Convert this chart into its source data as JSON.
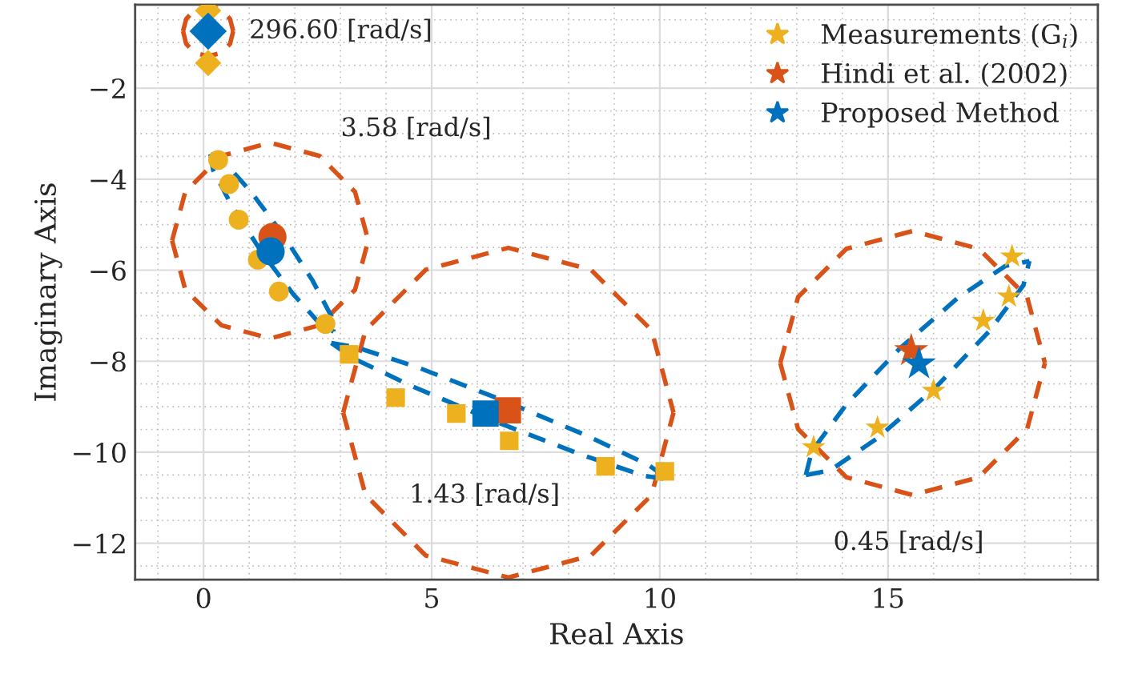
{
  "chart_data": {
    "type": "scatter",
    "xlabel": "Real Axis",
    "ylabel": "Imaginary Axis",
    "xlim": [
      -1.5,
      19.6
    ],
    "ylim": [
      -12.8,
      -0.17
    ],
    "xticks": [
      0,
      5,
      10,
      15
    ],
    "yticks": [
      {
        "value": -12,
        "label": "−12"
      },
      {
        "value": -10,
        "label": "−10"
      },
      {
        "value": -8,
        "label": "−8"
      },
      {
        "value": -6,
        "label": "−6"
      },
      {
        "value": -4,
        "label": "−4"
      },
      {
        "value": -2,
        "label": "−2"
      }
    ],
    "grid": true,
    "legend": "top right",
    "annotations": [
      "296.60 [rad/s]",
      "3.58 [rad/s]",
      "1.43 [rad/s]",
      "0.45 [rad/s]"
    ],
    "series": [
      {
        "type": "line",
        "color": "#d95319",
        "line_style": "dashed",
        "marker": "none",
        "x": [
          -0.45,
          -0.38,
          -0.18,
          0.1,
          0.38,
          0.58,
          0.65
        ],
        "values": [
          -0.75,
          -0.48,
          -0.27,
          -0.2,
          -0.27,
          -0.48,
          -0.75
        ]
      },
      {
        "type": "line",
        "color": "#d95319",
        "line_style": "dashed",
        "marker": "none",
        "x": [
          -0.45,
          -0.38,
          -0.18,
          0.1,
          0.38,
          0.58,
          0.65
        ],
        "values": [
          -0.75,
          -1.03,
          -1.23,
          -1.3,
          -1.23,
          -1.03,
          -0.75
        ]
      },
      {
        "type": "line",
        "color": "#d95319",
        "line_style": "dashed",
        "marker": "none",
        "x": [
          -0.69,
          -0.4,
          0.39,
          1.46,
          2.54,
          3.32,
          3.61
        ],
        "values": [
          -5.35,
          -4.28,
          -3.49,
          -3.2,
          -3.49,
          -4.28,
          -5.35
        ]
      },
      {
        "type": "line",
        "color": "#d95319",
        "line_style": "dashed",
        "marker": "none",
        "x": [
          -0.69,
          -0.4,
          0.39,
          1.46,
          2.54,
          3.32,
          3.61
        ],
        "values": [
          -5.35,
          -6.43,
          -7.21,
          -7.5,
          -7.21,
          -6.43,
          -5.35
        ]
      },
      {
        "type": "line",
        "color": "#d95319",
        "line_style": "dashed",
        "marker": "none",
        "x": [
          3.06,
          3.55,
          4.87,
          6.68,
          8.49,
          9.82,
          10.3
        ],
        "values": [
          -9.13,
          -7.32,
          -5.99,
          -5.51,
          -5.99,
          -7.32,
          -9.13
        ]
      },
      {
        "type": "line",
        "color": "#d95319",
        "line_style": "dashed",
        "marker": "none",
        "x": [
          3.06,
          3.55,
          4.87,
          6.68,
          8.49,
          9.82,
          10.3
        ],
        "values": [
          -9.13,
          -10.94,
          -12.27,
          -12.75,
          -12.27,
          -10.94,
          -9.13
        ]
      },
      {
        "type": "line",
        "color": "#d95319",
        "line_style": "dashed",
        "marker": "none",
        "x": [
          12.64,
          13.03,
          14.09,
          15.54,
          16.99,
          18.05,
          18.44
        ],
        "values": [
          -8.04,
          -6.59,
          -5.53,
          -5.14,
          -5.53,
          -6.59,
          -8.04
        ]
      },
      {
        "type": "line",
        "color": "#d95319",
        "line_style": "dashed",
        "marker": "none",
        "x": [
          12.64,
          13.03,
          14.09,
          15.54,
          16.99,
          18.05,
          18.44
        ],
        "values": [
          -8.04,
          -9.49,
          -10.55,
          -10.94,
          -10.55,
          -9.49,
          -8.04
        ]
      },
      {
        "type": "line",
        "color": "#0072bd",
        "line_style": "dashed",
        "marker": "none",
        "x": [
          0.15,
          0.46,
          1.04,
          1.75,
          2.39,
          2.8,
          2.85
        ],
        "values": [
          -3.45,
          -3.63,
          -4.28,
          -5.23,
          -6.23,
          -7.01,
          -7.35
        ]
      },
      {
        "type": "line",
        "color": "#0072bd",
        "line_style": "dashed",
        "marker": "none",
        "x": [
          0.15,
          0.21,
          0.61,
          1.25,
          1.96,
          2.55,
          2.85
        ],
        "values": [
          -3.45,
          -3.8,
          -4.57,
          -5.57,
          -6.52,
          -7.18,
          -7.35
        ]
      },
      {
        "type": "line",
        "color": "#0072bd",
        "line_style": "dashed",
        "marker": "none",
        "x": [
          2.8,
          3.34,
          4.73,
          6.59,
          8.43,
          9.75,
          10.2
        ],
        "values": [
          -7.6,
          -7.69,
          -8.15,
          -8.87,
          -9.65,
          -10.28,
          -10.6
        ]
      },
      {
        "type": "line",
        "color": "#0072bd",
        "line_style": "dashed",
        "marker": "none",
        "x": [
          2.8,
          3.25,
          4.57,
          6.41,
          8.27,
          9.66,
          10.2
        ],
        "values": [
          -7.6,
          -7.92,
          -8.55,
          -9.33,
          -10.05,
          -10.52,
          -10.6
        ]
      },
      {
        "type": "line",
        "color": "#0072bd",
        "line_style": "dashed",
        "marker": "none",
        "x": [
          13.2,
          13.33,
          14.08,
          15.25,
          16.53,
          17.57,
          18.1
        ],
        "values": [
          -10.5,
          -9.98,
          -8.96,
          -7.73,
          -6.61,
          -5.91,
          -5.8
        ]
      },
      {
        "type": "line",
        "color": "#0072bd",
        "line_style": "dashed",
        "marker": "none",
        "x": [
          13.2,
          13.73,
          14.77,
          16.05,
          17.22,
          17.97,
          18.1
        ],
        "values": [
          -10.5,
          -10.4,
          -9.69,
          -8.57,
          -7.34,
          -6.33,
          -5.8
        ]
      },
      {
        "color": "#edb120",
        "marker": "diamond",
        "x": [
          0.1,
          0.1
        ],
        "values": [
          -0.3,
          -1.45
        ]
      },
      {
        "color": "#edb120",
        "marker": "circle",
        "x": [
          0.32,
          0.56,
          0.77,
          1.19,
          1.65,
          2.67
        ],
        "values": [
          -3.58,
          -4.11,
          -4.89,
          -5.77,
          -6.47,
          -7.18
        ]
      },
      {
        "color": "#edb120",
        "marker": "square",
        "x": [
          3.19,
          4.21,
          5.54,
          6.7,
          8.81,
          10.11
        ],
        "values": [
          -7.85,
          -8.8,
          -9.15,
          -9.75,
          -10.31,
          -10.42
        ]
      },
      {
        "name": "Measurements (G$_{i}$)",
        "color": "#edb120",
        "marker": "star",
        "x": [
          17.72,
          17.65,
          17.09,
          16.0,
          14.77,
          13.37
        ],
        "values": [
          -5.7,
          -6.58,
          -7.11,
          -8.65,
          -9.46,
          -9.89
        ]
      },
      {
        "color": "#d95319",
        "marker": "circle",
        "x": [
          1.51
        ],
        "values": [
          -5.27
        ]
      },
      {
        "color": "#d95319",
        "marker": "square",
        "x": [
          6.67
        ],
        "values": [
          -9.08
        ]
      },
      {
        "name": "Hindi et al. (2002)",
        "color": "#d95319",
        "marker": "star",
        "x": [
          15.51
        ],
        "values": [
          -7.77
        ]
      },
      {
        "color": "#0072bd",
        "marker": "diamond",
        "x": [
          0.1
        ],
        "values": [
          -0.75
        ]
      },
      {
        "color": "#0072bd",
        "marker": "circle",
        "x": [
          1.47
        ],
        "values": [
          -5.59
        ]
      },
      {
        "color": "#0072bd",
        "marker": "square",
        "x": [
          6.18
        ],
        "values": [
          -9.15
        ]
      },
      {
        "name": "Proposed Method",
        "color": "#0072bd",
        "marker": "star",
        "x": [
          15.68
        ],
        "values": [
          -8.06
        ]
      }
    ]
  }
}
